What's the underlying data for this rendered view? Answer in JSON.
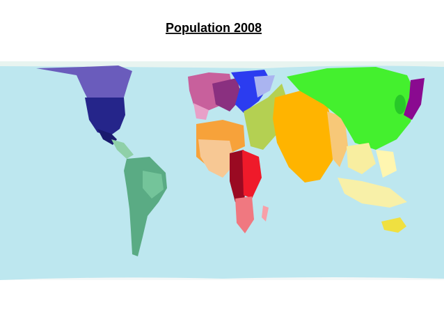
{
  "title": "Population 2008"
}
